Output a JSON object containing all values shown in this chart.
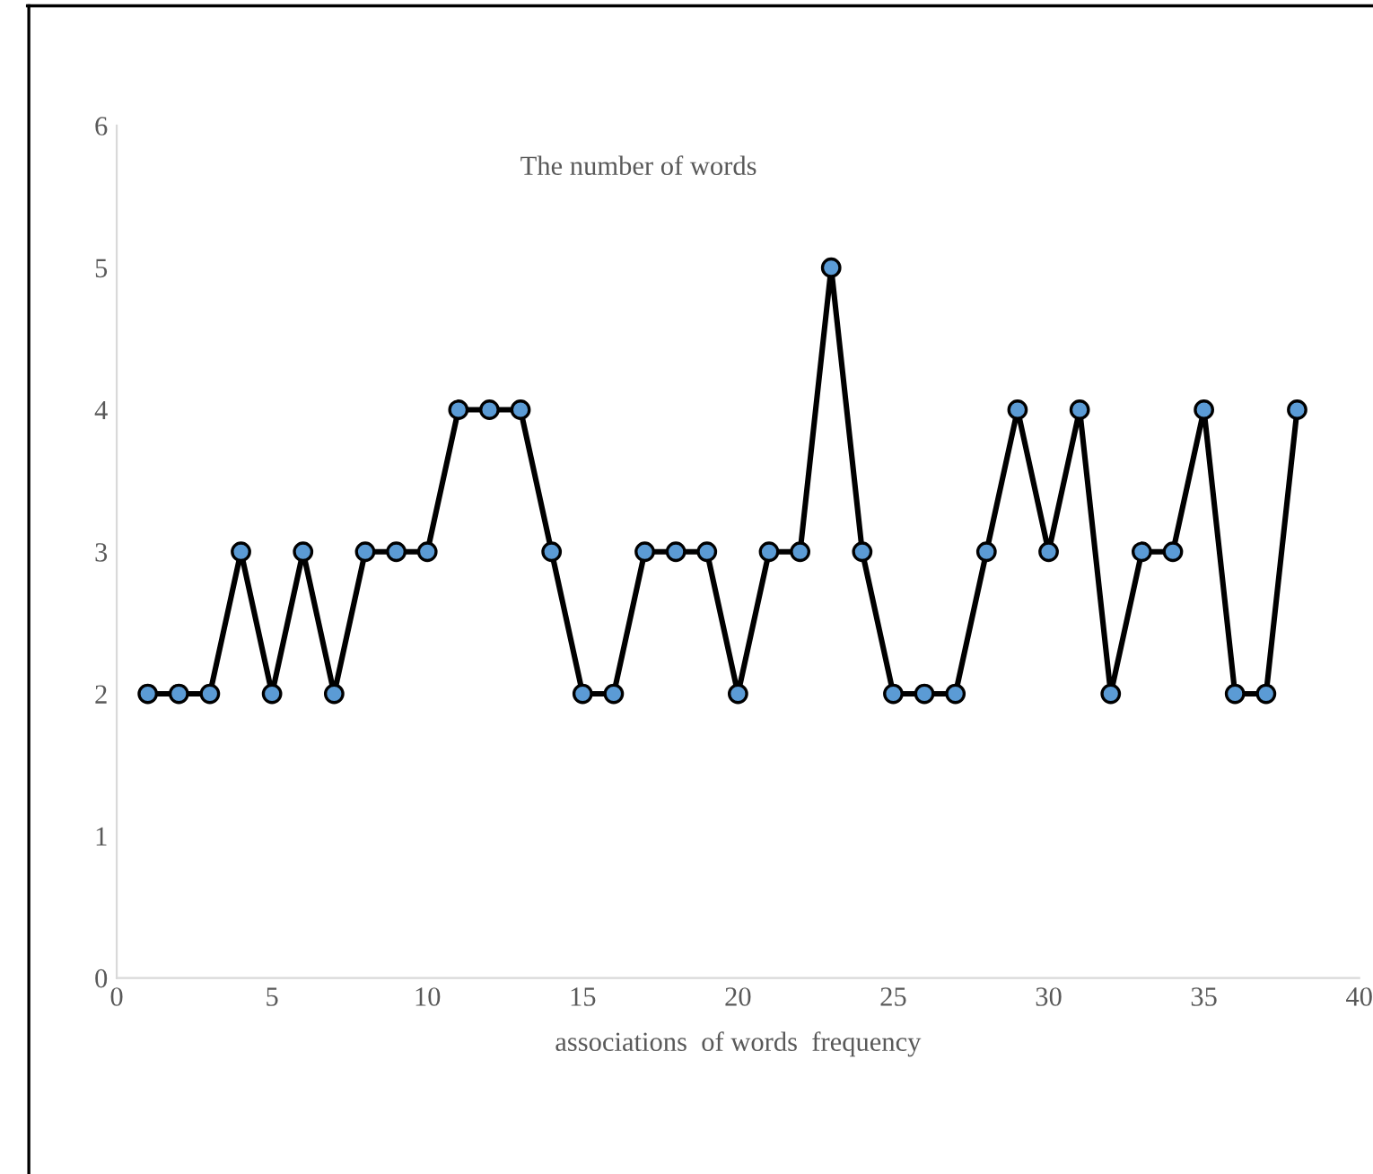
{
  "chart_data": {
    "type": "line",
    "title": "The number of words",
    "xlabel": "associations  of words  frequency",
    "x": [
      1,
      2,
      3,
      4,
      5,
      6,
      7,
      8,
      9,
      10,
      11,
      12,
      13,
      14,
      15,
      16,
      17,
      18,
      19,
      20,
      21,
      22,
      23,
      24,
      25,
      26,
      27,
      28,
      29,
      30,
      31,
      32,
      33,
      34,
      35,
      36,
      37,
      38
    ],
    "series": [
      {
        "color": "#5b9bd5",
        "values": [
          2,
          2,
          2,
          3,
          2,
          3,
          2,
          3,
          3,
          3,
          4,
          4,
          4,
          3,
          2,
          2,
          3,
          3,
          3,
          2,
          3,
          3,
          5,
          3,
          2,
          2,
          2,
          3,
          4,
          3,
          4,
          2,
          3,
          3,
          4,
          2,
          2,
          4
        ]
      }
    ],
    "xlim": [
      0,
      40
    ],
    "xticks": [
      0,
      5,
      10,
      15,
      20,
      25,
      30,
      35,
      40
    ],
    "ylim": [
      0,
      6
    ],
    "yticks": [
      0,
      1,
      2,
      3,
      4,
      5,
      6
    ],
    "marker": "circle",
    "line_style": "solid",
    "grid": false,
    "legend": false
  }
}
